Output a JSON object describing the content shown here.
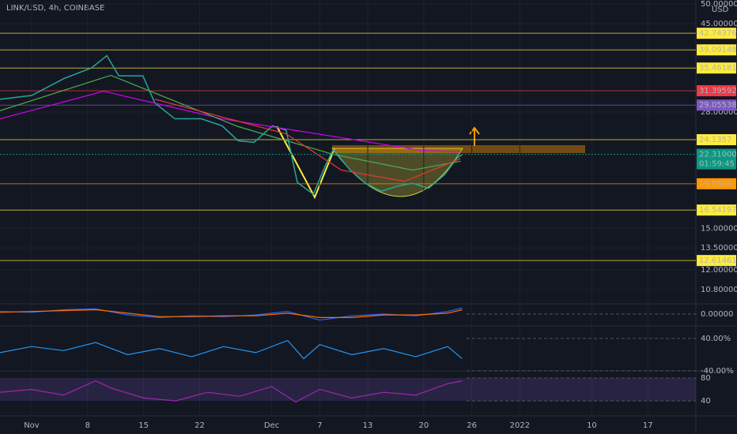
{
  "chart_data": [
    {
      "type": "line",
      "title": "LINK/USD, 4h, COINBASE",
      "y_unit": "USD",
      "log_scale": true,
      "grid": true,
      "xlim": [
        -3.95,
        83
      ],
      "ylim": [
        10.3,
        51.1
      ],
      "xticks": [
        {
          "value": 0,
          "label": "Nov"
        },
        {
          "value": 7,
          "label": "8"
        },
        {
          "value": 14,
          "label": "15"
        },
        {
          "value": 21,
          "label": "22"
        },
        {
          "value": 30,
          "label": "Dec"
        },
        {
          "value": 36,
          "label": "7"
        },
        {
          "value": 42,
          "label": "13"
        },
        {
          "value": 49,
          "label": "20"
        },
        {
          "value": 55,
          "label": "26"
        },
        {
          "value": 61,
          "label": "2022"
        },
        {
          "value": 70,
          "label": "10"
        },
        {
          "value": 77,
          "label": "17"
        }
      ],
      "yticks": [
        {
          "value": 50,
          "label": "50.00000"
        },
        {
          "value": 45,
          "label": "45.00000"
        },
        {
          "value": 28,
          "label": "28.00000"
        },
        {
          "value": 15,
          "label": "15.00000"
        },
        {
          "value": 13.5,
          "label": "13.50000"
        },
        {
          "value": 12,
          "label": "12.00000"
        },
        {
          "value": 10.8,
          "label": "10.80000"
        }
      ],
      "levels": [
        {
          "value": 42.74376,
          "color": "#ffeb3b"
        },
        {
          "value": 39.09148,
          "color": "#ffeb3b"
        },
        {
          "value": 35.46181,
          "color": "#ffeb3b"
        },
        {
          "value": 31.39592,
          "color": "#f23645"
        },
        {
          "value": 29.05538,
          "color": "#7e57c2"
        },
        {
          "value": 24.1357,
          "color": "#ffeb3b"
        },
        {
          "value": 19.0506,
          "color": "#ff9800"
        },
        {
          "value": 16.54197,
          "color": "#ffeb3b"
        },
        {
          "value": 12.61461,
          "color": "#ffeb3b"
        }
      ],
      "last_price": {
        "value": 22.31,
        "label": "22.31000",
        "countdown": "01:59:45",
        "color": "#089981"
      },
      "x": [
        -3.95,
        0,
        4,
        7.5,
        9.4,
        10.9,
        13.9,
        15.4,
        17.9,
        21.2,
        23.8,
        25.8,
        27.8,
        30.1,
        31.8,
        33.2,
        35.2,
        36.7,
        37.7,
        39.7,
        41.7,
        43.7,
        45.7,
        47.6,
        49.6,
        51.6,
        53.1,
        53.8
      ],
      "series": [
        {
          "color": "#26a69a",
          "values": [
            30.0,
            30.6,
            33.5,
            35.5,
            37.9,
            34.0,
            34.0,
            29.4,
            27.0,
            27.0,
            26.0,
            24.0,
            23.8,
            26.0,
            25.4,
            19.2,
            18.0,
            21.0,
            22.9,
            20.6,
            19.1,
            18.3,
            18.8,
            19.1,
            18.6,
            20.0,
            21.8,
            22.3
          ]
        },
        {
          "color": "#d500f9",
          "x": [
            -3.95,
            9,
            23.8,
            35.7,
            48.6,
            53.6
          ],
          "values": [
            27.0,
            31.3,
            27.0,
            24.9,
            22.8,
            22.6
          ]
        },
        {
          "color": "#4caf50",
          "x": [
            -3.95,
            9.9,
            25.8,
            37.7,
            47.6,
            53.6
          ],
          "values": [
            28.2,
            34.1,
            25.9,
            22.3,
            20.5,
            21.5
          ]
        },
        {
          "color": "#e53935",
          "x": [
            15.4,
            31.8,
            38.7,
            46.6,
            53.6
          ],
          "values": [
            30.0,
            24.9,
            20.5,
            19.3,
            21.8
          ]
        }
      ]
    },
    {
      "type": "line",
      "xlim": [
        -3.95,
        83
      ],
      "ylim": [
        -1,
        1
      ],
      "yticks": [
        {
          "value": 0,
          "label": "0.00000"
        }
      ],
      "x": [
        -3.95,
        0,
        4,
        8,
        12,
        16,
        20,
        24,
        28,
        32,
        36,
        40,
        44,
        48,
        52,
        53.8
      ],
      "series": [
        {
          "color": "#2962ff",
          "values": [
            0.3,
            0.2,
            0.5,
            0.6,
            -0.1,
            -0.4,
            -0.2,
            -0.3,
            -0.1,
            0.3,
            -0.7,
            -0.2,
            0.0,
            -0.2,
            0.3,
            0.7
          ]
        },
        {
          "color": "#ff6d00",
          "values": [
            0.2,
            0.3,
            0.4,
            0.5,
            0.1,
            -0.3,
            -0.3,
            -0.2,
            -0.2,
            0.1,
            -0.4,
            -0.4,
            -0.1,
            -0.1,
            0.1,
            0.5
          ]
        }
      ]
    },
    {
      "type": "line",
      "xlim": [
        -3.95,
        83
      ],
      "ylim": [
        -40,
        71
      ],
      "yticks": [
        {
          "value": 40,
          "label": "40.00%"
        },
        {
          "value": -40,
          "label": "-40.00%"
        }
      ],
      "x": [
        -3.95,
        0,
        4,
        8,
        12,
        16,
        20,
        24,
        28,
        32,
        34,
        36,
        40,
        44,
        48,
        52,
        53.8
      ],
      "series": [
        {
          "color": "#2196f3",
          "values": [
            5,
            20,
            10,
            30,
            0,
            15,
            -5,
            20,
            5,
            35,
            -10,
            25,
            0,
            15,
            -5,
            20,
            -10
          ]
        }
      ]
    },
    {
      "type": "line",
      "xlim": [
        -3.95,
        83
      ],
      "ylim": [
        16.5,
        92.4
      ],
      "band": [
        40,
        80
      ],
      "yticks": [
        80,
        40
      ],
      "x": [
        -3.95,
        0,
        4,
        8,
        10,
        14,
        18,
        22,
        26,
        30,
        33,
        36,
        40,
        44,
        48,
        52,
        53.8
      ],
      "series": [
        {
          "color": "#9c27b0",
          "values": [
            55,
            60,
            50,
            75,
            62,
            45,
            40,
            55,
            48,
            65,
            38,
            60,
            45,
            55,
            50,
            70,
            75
          ]
        }
      ]
    }
  ]
}
